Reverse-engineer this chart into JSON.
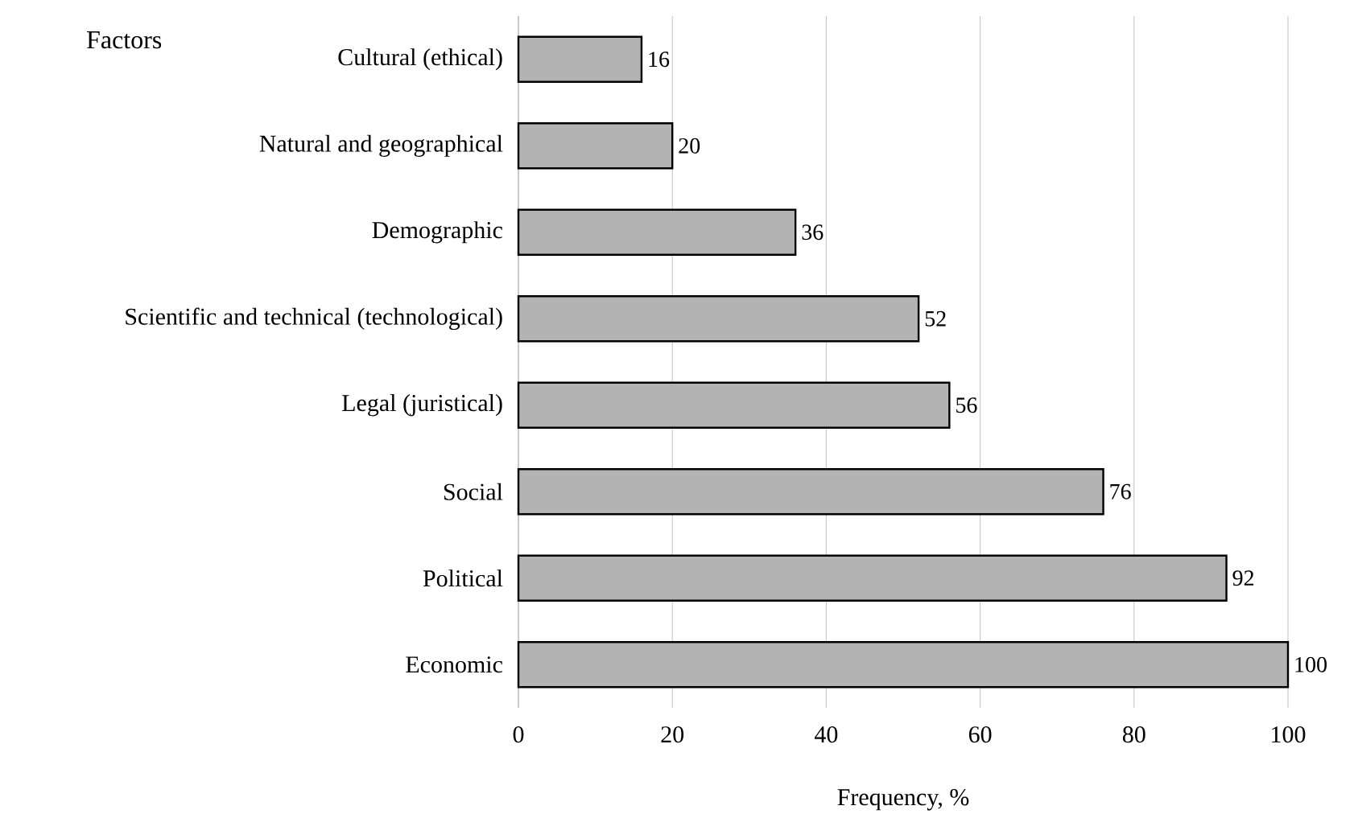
{
  "chart_data": {
    "type": "bar",
    "orientation": "horizontal",
    "xlabel": "Frequency, %",
    "ylabel": "Factors",
    "categories": [
      "Cultural (ethical)",
      "Natural and geographical",
      "Demographic",
      "Scientific and technical (technological)",
      "Legal (juristical)",
      "Social",
      "Political",
      "Economic"
    ],
    "values": [
      16,
      20,
      36,
      52,
      56,
      76,
      92,
      100
    ],
    "color": "#b3b3b3",
    "xlim": [
      0,
      100
    ],
    "xticks": [
      0,
      20,
      40,
      60,
      80,
      100
    ],
    "grid": "x",
    "data_labels": true
  }
}
